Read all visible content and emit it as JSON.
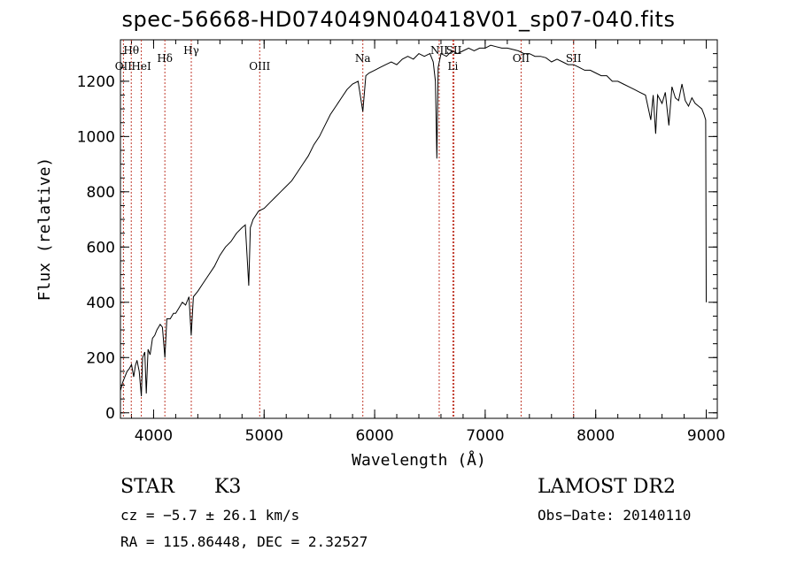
{
  "chart_data": {
    "type": "line",
    "title": "spec-56668-HD074049N040418V01_sp07-040.fits",
    "xlabel": "Wavelength (Å)",
    "ylabel": "Flux (relative)",
    "xlim": [
      3700,
      9100
    ],
    "ylim": [
      -20,
      1350
    ],
    "xticks": [
      4000,
      5000,
      6000,
      7000,
      8000,
      9000
    ],
    "yticks": [
      0,
      200,
      400,
      600,
      800,
      1000,
      1200
    ],
    "grid": false,
    "series": [
      {
        "x": [
          3700,
          3720,
          3740,
          3760,
          3780,
          3800,
          3820,
          3835,
          3850,
          3870,
          3889,
          3900,
          3920,
          3934,
          3950,
          3968,
          3990,
          4010,
          4030,
          4060,
          4080,
          4102,
          4120,
          4150,
          4180,
          4200,
          4230,
          4260,
          4290,
          4320,
          4340,
          4360,
          4400,
          4450,
          4500,
          4550,
          4600,
          4650,
          4700,
          4750,
          4800,
          4830,
          4850,
          4861,
          4875,
          4900,
          4950,
          5000,
          5050,
          5100,
          5150,
          5200,
          5250,
          5300,
          5350,
          5400,
          5450,
          5500,
          5550,
          5600,
          5650,
          5700,
          5750,
          5800,
          5850,
          5893,
          5920,
          5950,
          6000,
          6050,
          6100,
          6150,
          6200,
          6250,
          6300,
          6350,
          6400,
          6450,
          6500,
          6530,
          6550,
          6563,
          6575,
          6600,
          6650,
          6700,
          6750,
          6800,
          6850,
          6900,
          6950,
          7000,
          7050,
          7100,
          7150,
          7200,
          7250,
          7300,
          7350,
          7400,
          7450,
          7500,
          7550,
          7600,
          7650,
          7700,
          7750,
          7800,
          7850,
          7900,
          7950,
          8000,
          8050,
          8100,
          8150,
          8200,
          8250,
          8300,
          8350,
          8400,
          8450,
          8498,
          8520,
          8542,
          8560,
          8600,
          8630,
          8662,
          8690,
          8720,
          8750,
          8780,
          8810,
          8840,
          8870,
          8900,
          8930,
          8960,
          8980,
          8995,
          9000
        ],
        "y": [
          80,
          110,
          130,
          150,
          160,
          175,
          130,
          170,
          190,
          150,
          60,
          200,
          220,
          70,
          230,
          210,
          270,
          280,
          300,
          320,
          310,
          200,
          340,
          340,
          360,
          360,
          380,
          400,
          390,
          420,
          280,
          420,
          440,
          470,
          500,
          530,
          570,
          600,
          620,
          650,
          670,
          680,
          540,
          460,
          670,
          700,
          730,
          740,
          760,
          780,
          800,
          820,
          840,
          870,
          900,
          930,
          970,
          1000,
          1040,
          1080,
          1110,
          1140,
          1170,
          1190,
          1200,
          1090,
          1220,
          1230,
          1240,
          1250,
          1260,
          1270,
          1260,
          1280,
          1290,
          1280,
          1300,
          1290,
          1300,
          1270,
          1200,
          920,
          1250,
          1300,
          1290,
          1310,
          1300,
          1310,
          1320,
          1310,
          1320,
          1320,
          1330,
          1325,
          1320,
          1320,
          1315,
          1310,
          1300,
          1300,
          1290,
          1290,
          1285,
          1270,
          1280,
          1270,
          1260,
          1260,
          1250,
          1240,
          1240,
          1230,
          1220,
          1220,
          1200,
          1200,
          1190,
          1180,
          1170,
          1160,
          1150,
          1060,
          1150,
          1010,
          1150,
          1120,
          1160,
          1040,
          1180,
          1140,
          1130,
          1190,
          1130,
          1110,
          1140,
          1120,
          1110,
          1100,
          1080,
          1060,
          400
        ]
      }
    ],
    "lines": [
      {
        "name": "Hθ",
        "x": 3798,
        "row": 1
      },
      {
        "name": "OII",
        "x": 3727,
        "row": 2
      },
      {
        "name": "HeI",
        "x": 3889,
        "row": 2
      },
      {
        "name": "Hδ",
        "x": 4102,
        "row": 1.5
      },
      {
        "name": "Hγ",
        "x": 4341,
        "row": 1
      },
      {
        "name": "OIII",
        "x": 4960,
        "row": 2
      },
      {
        "name": "Na",
        "x": 5893,
        "row": 1.5
      },
      {
        "name": "NII",
        "x": 6584,
        "row": 1
      },
      {
        "name": "SII",
        "x": 6717,
        "row": 1
      },
      {
        "name": "Li",
        "x": 6708,
        "row": 2
      },
      {
        "name": "OII",
        "x": 7325,
        "row": 1.5
      },
      {
        "name": "SII",
        "x": 7800,
        "row": 1.5
      }
    ],
    "line_color": "#c0392b"
  },
  "footer": {
    "class_label": "STAR",
    "subclass": "K3",
    "survey": "LAMOST DR2",
    "cz": "cz = −5.7 ± 26.1 km/s",
    "obs_date": "Obs−Date: 20140110",
    "coords": "RA = 115.86448, DEC =   2.32527"
  }
}
